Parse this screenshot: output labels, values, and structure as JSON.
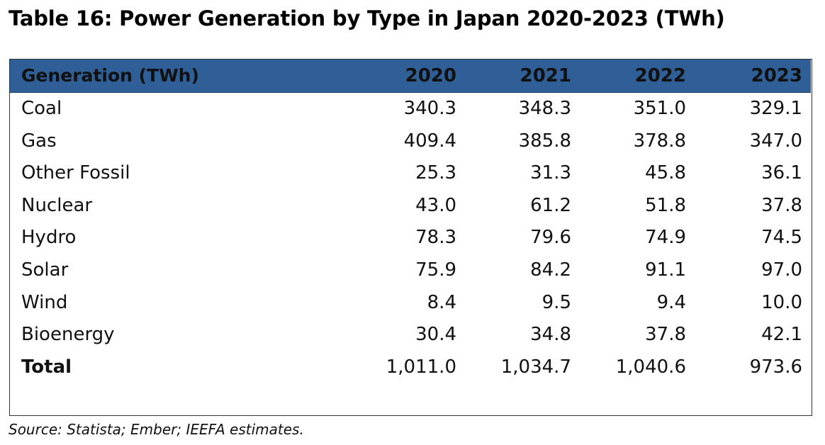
{
  "title": "Table 16: Power Generation by Type in Japan 2020-2023 (TWh)",
  "table": {
    "header": {
      "label": "Generation (TWh)",
      "years": [
        "2020",
        "2021",
        "2022",
        "2023"
      ]
    },
    "rows": [
      {
        "label": "Coal",
        "values": [
          "340.3",
          "348.3",
          "351.0",
          "329.1"
        ]
      },
      {
        "label": "Gas",
        "values": [
          "409.4",
          "385.8",
          "378.8",
          "347.0"
        ]
      },
      {
        "label": "Other Fossil",
        "values": [
          "25.3",
          "31.3",
          "45.8",
          "36.1"
        ]
      },
      {
        "label": "Nuclear",
        "values": [
          "43.0",
          "61.2",
          "51.8",
          "37.8"
        ]
      },
      {
        "label": "Hydro",
        "values": [
          "78.3",
          "79.6",
          "74.9",
          "74.5"
        ]
      },
      {
        "label": "Solar",
        "values": [
          "75.9",
          "84.2",
          "91.1",
          "97.0"
        ]
      },
      {
        "label": "Wind",
        "values": [
          "8.4",
          "9.5",
          "9.4",
          "10.0"
        ]
      },
      {
        "label": "Bioenergy",
        "values": [
          "30.4",
          "34.8",
          "37.8",
          "42.1"
        ]
      },
      {
        "label": "Total",
        "values": [
          "1,011.0",
          "1,034.7",
          "1,040.6",
          "973.6"
        ]
      }
    ]
  },
  "source": "Source: Statista; Ember; IEEFA estimates.",
  "colors": {
    "header_background": "#2f5f96",
    "text": "#111111",
    "border": "#333333"
  }
}
